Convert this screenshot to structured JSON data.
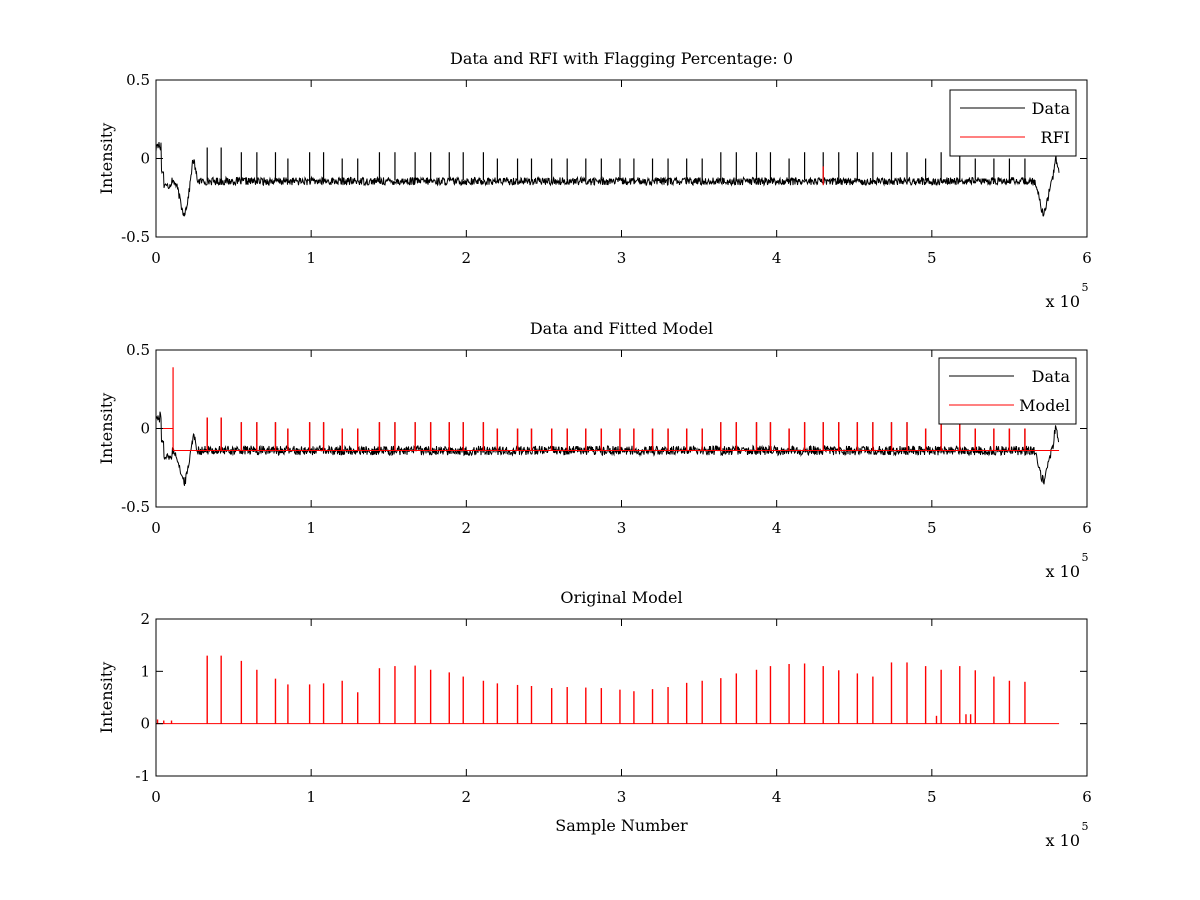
{
  "colors": {
    "data": "#000000",
    "rfi": "#ff0000",
    "axes": "#000000",
    "background": "#ffffff"
  },
  "chart_data": [
    {
      "type": "line",
      "title": "Data and RFI with Flagging Percentage: 0",
      "ylabel": "Intensity",
      "xlabel": "",
      "xlim": [
        0,
        600000
      ],
      "ylim": [
        -0.5,
        0.5
      ],
      "xticks": [
        "0",
        "1",
        "2",
        "3",
        "4",
        "5",
        "6"
      ],
      "yticks": [
        "-0.5",
        "0",
        "0.5"
      ],
      "x_multiplier": {
        "base": "x 10",
        "exp": "5"
      },
      "legend": {
        "position": "top-right",
        "entries": [
          "Data",
          "RFI"
        ]
      },
      "series": [
        {
          "name": "Data",
          "color": "#000000",
          "baseline": -0.14,
          "noise_band": [
            -0.17,
            -0.12
          ],
          "edge_dips": [
            {
              "x": 18000,
              "y": -0.34
            },
            {
              "x": 572000,
              "y": -0.34
            }
          ],
          "edge_bumps": [
            {
              "x": 1500,
              "y": 0.11
            },
            {
              "x": 24000,
              "y": 0.0
            },
            {
              "x": 580000,
              "y": 0.0
            }
          ],
          "spikes": {
            "x": [
              33000,
              42000,
              55000,
              65000,
              77000,
              85000,
              99000,
              108000,
              120000,
              130000,
              144000,
              154000,
              167000,
              177000,
              189000,
              198000,
              211000,
              220000,
              233000,
              242000,
              255000,
              265000,
              277000,
              287000,
              299000,
              308000,
              320000,
              330000,
              342000,
              352000,
              364000,
              374000,
              387000,
              396000,
              408000,
              418000,
              430000,
              440000,
              452000,
              462000,
              474000,
              484000,
              496000,
              506000,
              518000,
              528000,
              540000,
              550000,
              560000
            ],
            "y": [
              0.07,
              0.07,
              0.04,
              0.04,
              0.04,
              0.0,
              0.04,
              0.04,
              0.0,
              0.0,
              0.04,
              0.04,
              0.04,
              0.04,
              0.04,
              0.04,
              0.04,
              0.0,
              0.0,
              0.0,
              0.0,
              0.0,
              0.0,
              0.0,
              0.0,
              0.0,
              0.0,
              0.0,
              0.0,
              0.0,
              0.04,
              0.04,
              0.04,
              0.04,
              0.0,
              0.04,
              0.04,
              0.04,
              0.04,
              0.04,
              0.04,
              0.04,
              0.0,
              0.04,
              0.04,
              0.0,
              0.0,
              0.0,
              0.0
            ]
          }
        },
        {
          "name": "RFI",
          "color": "#ff0000",
          "segments": [
            {
              "x": 430000,
              "y": [
                -0.17,
                -0.05
              ]
            }
          ]
        }
      ]
    },
    {
      "type": "line",
      "title": "Data and Fitted Model",
      "ylabel": "Intensity",
      "xlabel": "",
      "xlim": [
        0,
        600000
      ],
      "ylim": [
        -0.5,
        0.5
      ],
      "xticks": [
        "0",
        "1",
        "2",
        "3",
        "4",
        "5",
        "6"
      ],
      "yticks": [
        "-0.5",
        "0",
        "0.5"
      ],
      "x_multiplier": {
        "base": "x 10",
        "exp": "5"
      },
      "legend": {
        "position": "top-right",
        "entries": [
          "Data",
          "Model"
        ]
      },
      "series": [
        {
          "name": "Data",
          "color": "#000000",
          "baseline": -0.14,
          "noise_band": [
            -0.17,
            -0.11
          ],
          "edge_dips": [
            {
              "x": 18000,
              "y": -0.34
            },
            {
              "x": 572000,
              "y": -0.33
            }
          ],
          "edge_bumps": [
            {
              "x": 1500,
              "y": 0.11
            },
            {
              "x": 24000,
              "y": -0.04
            },
            {
              "x": 580000,
              "y": 0.0
            }
          ],
          "spikes": {
            "x": [
              33000,
              42000,
              55000,
              65000,
              77000,
              85000,
              99000,
              108000,
              120000,
              130000,
              144000,
              154000,
              167000,
              177000,
              189000,
              198000,
              211000,
              220000,
              233000,
              242000,
              255000,
              265000,
              277000,
              287000,
              299000,
              308000,
              320000,
              330000,
              342000,
              352000,
              364000,
              374000,
              387000,
              396000,
              408000,
              418000,
              430000,
              440000,
              452000,
              462000,
              474000,
              484000,
              496000,
              506000,
              518000,
              528000,
              540000,
              550000,
              560000
            ],
            "y": [
              0.07,
              0.07,
              0.04,
              0.04,
              0.04,
              0.0,
              0.04,
              0.04,
              0.0,
              0.0,
              0.04,
              0.04,
              0.04,
              0.04,
              0.04,
              0.04,
              0.04,
              0.0,
              0.0,
              0.0,
              0.0,
              0.0,
              0.0,
              0.0,
              0.0,
              0.0,
              0.0,
              0.0,
              0.0,
              0.0,
              0.04,
              0.04,
              0.04,
              0.04,
              0.0,
              0.04,
              0.04,
              0.04,
              0.04,
              0.04,
              0.04,
              0.04,
              0.0,
              0.04,
              0.04,
              0.0,
              0.0,
              0.0,
              0.0
            ]
          }
        },
        {
          "name": "Model",
          "color": "#ff0000",
          "baseline": -0.14,
          "start_plateau": {
            "x": [
              0,
              11000
            ],
            "y": 0.0
          },
          "start_spike": {
            "x": 11000,
            "y": 0.39
          },
          "spikes": {
            "x": [
              33000,
              42000,
              55000,
              65000,
              77000,
              85000,
              99000,
              108000,
              120000,
              130000,
              144000,
              154000,
              167000,
              177000,
              189000,
              198000,
              211000,
              220000,
              233000,
              242000,
              255000,
              265000,
              277000,
              287000,
              299000,
              308000,
              320000,
              330000,
              342000,
              352000,
              364000,
              374000,
              387000,
              396000,
              408000,
              418000,
              430000,
              440000,
              452000,
              462000,
              474000,
              484000,
              496000,
              506000,
              518000,
              528000,
              540000,
              550000,
              560000
            ],
            "y": [
              0.07,
              0.07,
              0.04,
              0.04,
              0.04,
              0.0,
              0.04,
              0.04,
              0.0,
              0.0,
              0.04,
              0.04,
              0.04,
              0.04,
              0.04,
              0.04,
              0.04,
              0.0,
              0.0,
              0.0,
              0.0,
              0.0,
              0.0,
              0.0,
              0.0,
              0.0,
              0.0,
              0.0,
              0.0,
              0.0,
              0.04,
              0.04,
              0.04,
              0.04,
              0.0,
              0.04,
              0.04,
              0.04,
              0.04,
              0.04,
              0.04,
              0.04,
              0.0,
              0.04,
              0.04,
              0.0,
              0.0,
              0.0,
              0.0
            ]
          }
        }
      ]
    },
    {
      "type": "line",
      "title": "Original Model",
      "ylabel": "Intensity",
      "xlabel": "Sample Number",
      "xlim": [
        0,
        600000
      ],
      "ylim": [
        -1,
        2
      ],
      "xticks": [
        "0",
        "1",
        "2",
        "3",
        "4",
        "5",
        "6"
      ],
      "yticks": [
        "-1",
        "0",
        "1",
        "2"
      ],
      "x_multiplier": {
        "base": "x 10",
        "exp": "5"
      },
      "series": [
        {
          "name": "",
          "color": "#ff0000",
          "baseline": 0.0,
          "x_end": 582000,
          "spikes": {
            "x": [
              1000,
              5000,
              10000,
              33000,
              42000,
              55000,
              65000,
              77000,
              85000,
              99000,
              108000,
              120000,
              130000,
              144000,
              154000,
              167000,
              177000,
              189000,
              198000,
              211000,
              220000,
              233000,
              242000,
              255000,
              265000,
              277000,
              287000,
              299000,
              308000,
              320000,
              330000,
              342000,
              352000,
              364000,
              374000,
              387000,
              396000,
              408000,
              418000,
              430000,
              440000,
              452000,
              462000,
              474000,
              484000,
              496000,
              503000,
              506000,
              518000,
              522000,
              525000,
              528000,
              540000,
              550000,
              560000
            ],
            "y": [
              0.08,
              0.06,
              0.06,
              1.3,
              1.3,
              1.2,
              1.03,
              0.86,
              0.75,
              0.75,
              0.77,
              0.82,
              0.6,
              1.06,
              1.1,
              1.11,
              1.03,
              0.98,
              0.9,
              0.82,
              0.77,
              0.74,
              0.72,
              0.68,
              0.7,
              0.69,
              0.68,
              0.65,
              0.62,
              0.66,
              0.7,
              0.78,
              0.82,
              0.87,
              0.96,
              1.03,
              1.1,
              1.14,
              1.15,
              1.1,
              1.02,
              0.96,
              0.9,
              1.17,
              1.17,
              1.1,
              0.15,
              1.03,
              1.1,
              0.18,
              0.18,
              1.02,
              0.9,
              0.82,
              0.8
            ]
          }
        }
      ]
    }
  ]
}
